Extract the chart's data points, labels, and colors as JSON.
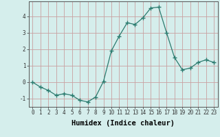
{
  "xlabel": "Humidex (Indice chaleur)",
  "x": [
    0,
    1,
    2,
    3,
    4,
    5,
    6,
    7,
    8,
    9,
    10,
    11,
    12,
    13,
    14,
    15,
    16,
    17,
    18,
    19,
    20,
    21,
    22,
    23
  ],
  "y": [
    0.0,
    -0.3,
    -0.5,
    -0.8,
    -0.7,
    -0.8,
    -1.1,
    -1.2,
    -0.9,
    0.05,
    1.9,
    2.8,
    3.6,
    3.5,
    3.9,
    4.5,
    4.55,
    3.0,
    1.5,
    0.75,
    0.85,
    1.2,
    1.35,
    1.2
  ],
  "line_color": "#2a7a6e",
  "marker": "+",
  "marker_size": 4,
  "bg_color": "#d5eeec",
  "grid_color": "#c0d8d8",
  "ylim": [
    -1.5,
    4.9
  ],
  "xlim": [
    -0.5,
    23.5
  ],
  "yticks": [
    -1,
    0,
    1,
    2,
    3,
    4
  ],
  "xticks": [
    0,
    1,
    2,
    3,
    4,
    5,
    6,
    7,
    8,
    9,
    10,
    11,
    12,
    13,
    14,
    15,
    16,
    17,
    18,
    19,
    20,
    21,
    22,
    23
  ],
  "tick_fontsize": 5.5,
  "xlabel_fontsize": 7.5
}
